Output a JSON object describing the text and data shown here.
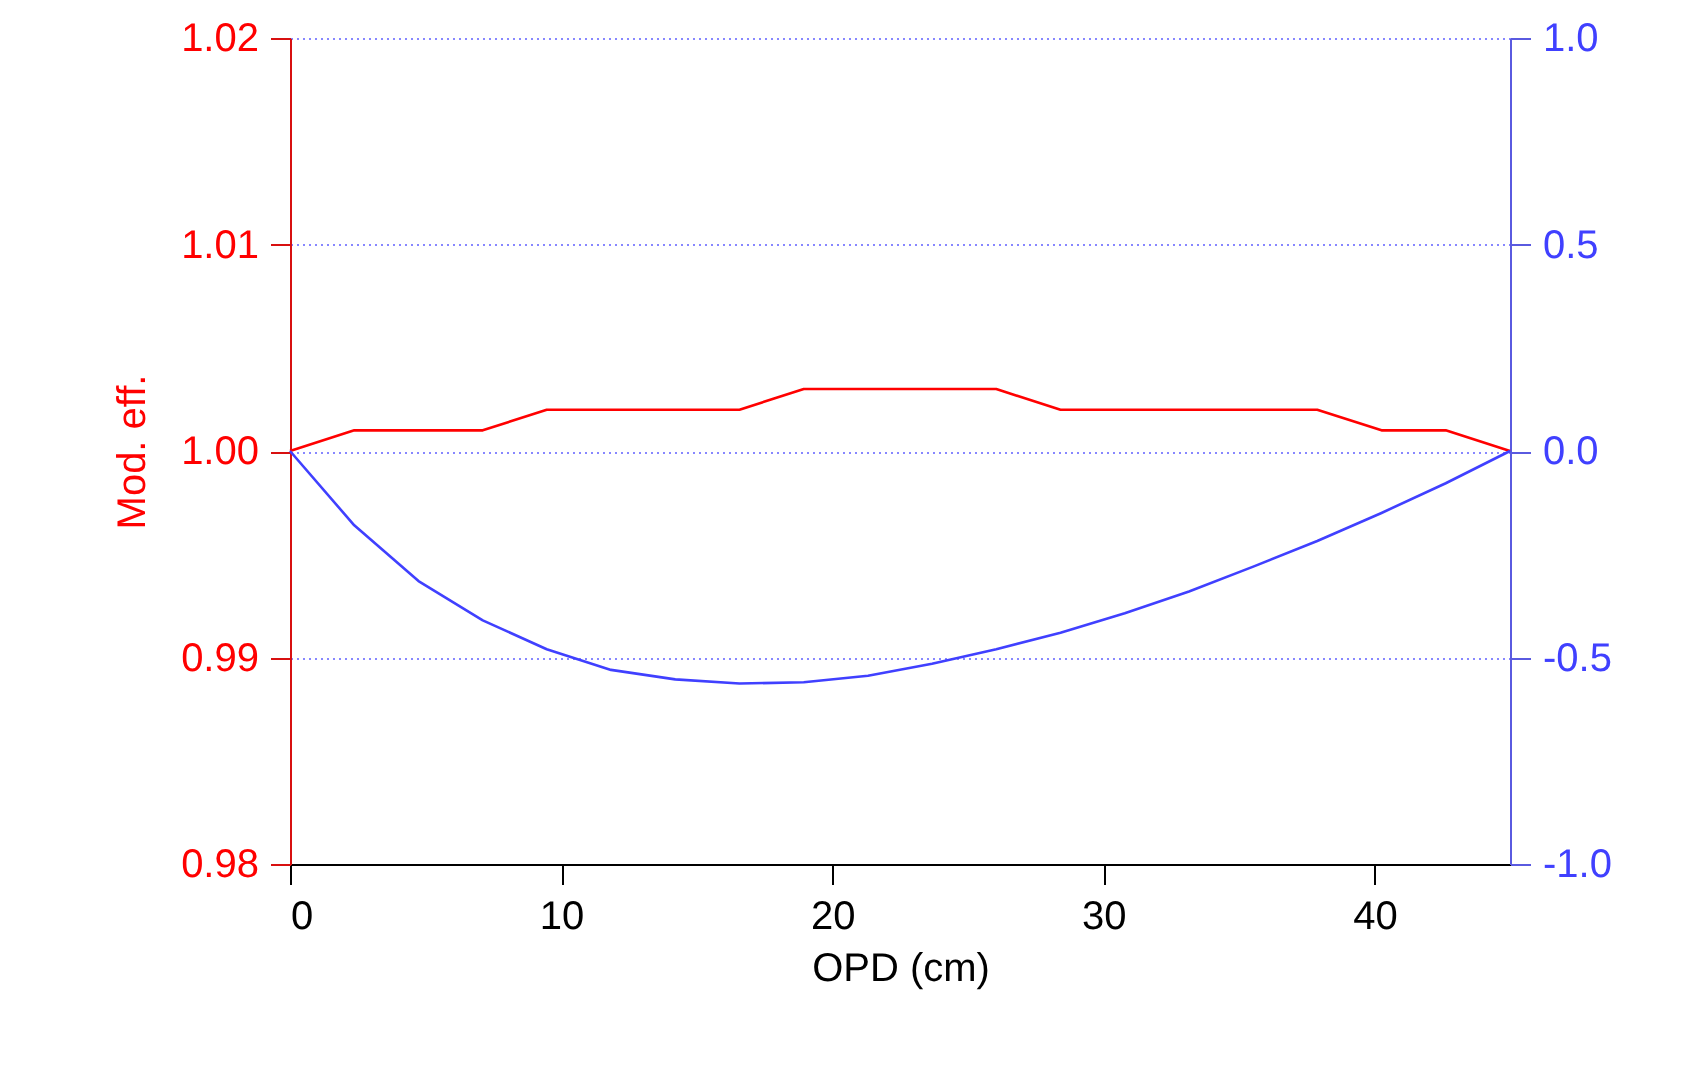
{
  "chart_data": {
    "type": "line",
    "xlabel": "OPD (cm)",
    "ylabel": "Mod. eff.",
    "x": [
      0,
      2.37,
      4.74,
      7.11,
      9.47,
      11.84,
      14.21,
      16.58,
      18.95,
      21.32,
      23.68,
      26.05,
      28.42,
      30.79,
      33.16,
      35.53,
      37.89,
      40.26,
      42.63,
      45
    ],
    "series": [
      {
        "color": "#ff0000",
        "values": [
          1.0,
          1.001,
          1.001,
          1.001,
          1.002,
          1.002,
          1.002,
          1.002,
          1.003,
          1.003,
          1.003,
          1.003,
          1.002,
          1.002,
          1.002,
          1.002,
          1.002,
          1.001,
          1.001,
          1.0
        ]
      },
      {
        "color": "#4040ff",
        "axis": "y2",
        "values": [
          0,
          -0.18,
          -0.315,
          -0.41,
          -0.48,
          -0.53,
          -0.553,
          -0.563,
          -0.56,
          -0.544,
          -0.515,
          -0.48,
          -0.44,
          -0.393,
          -0.34,
          -0.28,
          -0.218,
          -0.15,
          -0.078,
          0
        ]
      }
    ],
    "xlim": [
      0,
      45
    ],
    "xticks": [
      0,
      10,
      20,
      30,
      40
    ],
    "ylim": [
      0.98,
      1.02
    ],
    "yticks": [
      {
        "value": 0.98,
        "label": "0.98"
      },
      {
        "value": 0.99,
        "label": "0.99"
      },
      {
        "value": 1.0,
        "label": "1.00"
      },
      {
        "value": 1.01,
        "label": "1.01"
      },
      {
        "value": 1.02,
        "label": "1.02"
      }
    ],
    "y2lim": [
      -1,
      1
    ],
    "y2ticks": [
      {
        "value": -1,
        "label": "-1.0"
      },
      {
        "value": -0.5,
        "label": "-0.5"
      },
      {
        "value": 0,
        "label": "0.0"
      },
      {
        "value": 0.5,
        "label": "0.5"
      },
      {
        "value": 1,
        "label": "1.0"
      }
    ],
    "grid": "y",
    "marker": "none",
    "line_style": "solid"
  }
}
